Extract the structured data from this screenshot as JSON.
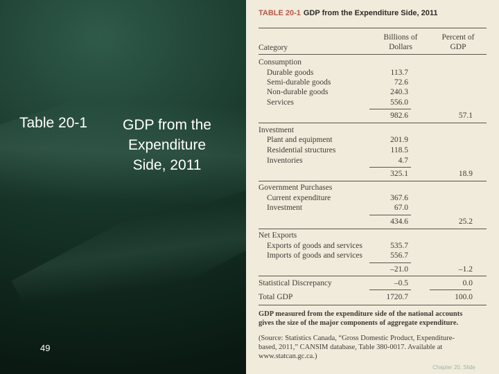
{
  "slide": {
    "label": "Table 20-1",
    "title": "GDP from the Expenditure Side, 2011",
    "page_number": "49",
    "footer": "Chapter 20, Slide"
  },
  "table": {
    "id": "TABLE 20-1",
    "heading": "GDP from the Expenditure Side, 2011",
    "col_category": "Category",
    "col_dollars_1": "Billions of",
    "col_dollars_2": "Dollars",
    "col_percent_1": "Percent of",
    "col_percent_2": "GDP",
    "rows": [
      {
        "label": "Consumption",
        "v1": "",
        "v2": ""
      },
      {
        "label": "Durable goods",
        "v1": "113.7",
        "v2": ""
      },
      {
        "label": "Semi-durable goods",
        "v1": "72.6",
        "v2": ""
      },
      {
        "label": "Non-durable goods",
        "v1": "240.3",
        "v2": ""
      },
      {
        "label": "Services",
        "v1": "556.0",
        "v2": ""
      },
      {
        "label": "",
        "v1": "982.6",
        "v2": "57.1"
      },
      {
        "label": "Investment",
        "v1": "",
        "v2": ""
      },
      {
        "label": "Plant and equipment",
        "v1": "201.9",
        "v2": ""
      },
      {
        "label": "Residential structures",
        "v1": "118.5",
        "v2": ""
      },
      {
        "label": "Inventories",
        "v1": "4.7",
        "v2": ""
      },
      {
        "label": "",
        "v1": "325.1",
        "v2": "18.9"
      },
      {
        "label": "Government Purchases",
        "v1": "",
        "v2": ""
      },
      {
        "label": "Current expenditure",
        "v1": "367.6",
        "v2": ""
      },
      {
        "label": "Investment",
        "v1": "67.0",
        "v2": ""
      },
      {
        "label": "",
        "v1": "434.6",
        "v2": "25.2"
      },
      {
        "label": "Net Exports",
        "v1": "",
        "v2": ""
      },
      {
        "label": "Exports of goods and services",
        "v1": "535.7",
        "v2": ""
      },
      {
        "label": "Imports of goods and services",
        "v1": "556.7",
        "v2": ""
      },
      {
        "label": "",
        "v1": "–21.0",
        "v2": "–1.2"
      },
      {
        "label": "Statistical Discrepancy",
        "v1": "–0.5",
        "v2": "0.0"
      },
      {
        "label": "Total GDP",
        "v1": "1720.7",
        "v2": "100.0"
      }
    ],
    "note_1": "GDP measured from the expenditure side of the national accounts",
    "note_2": "gives the size of the major components of aggregate expenditure.",
    "source_1": "(Source: Statistics Canada, “Gross Domestic Product, Expenditure-",
    "source_2": "based, 2011,” CANSIM database, Table 380-0017. Available at",
    "source_3": "www.statcan.gc.ca.)"
  }
}
